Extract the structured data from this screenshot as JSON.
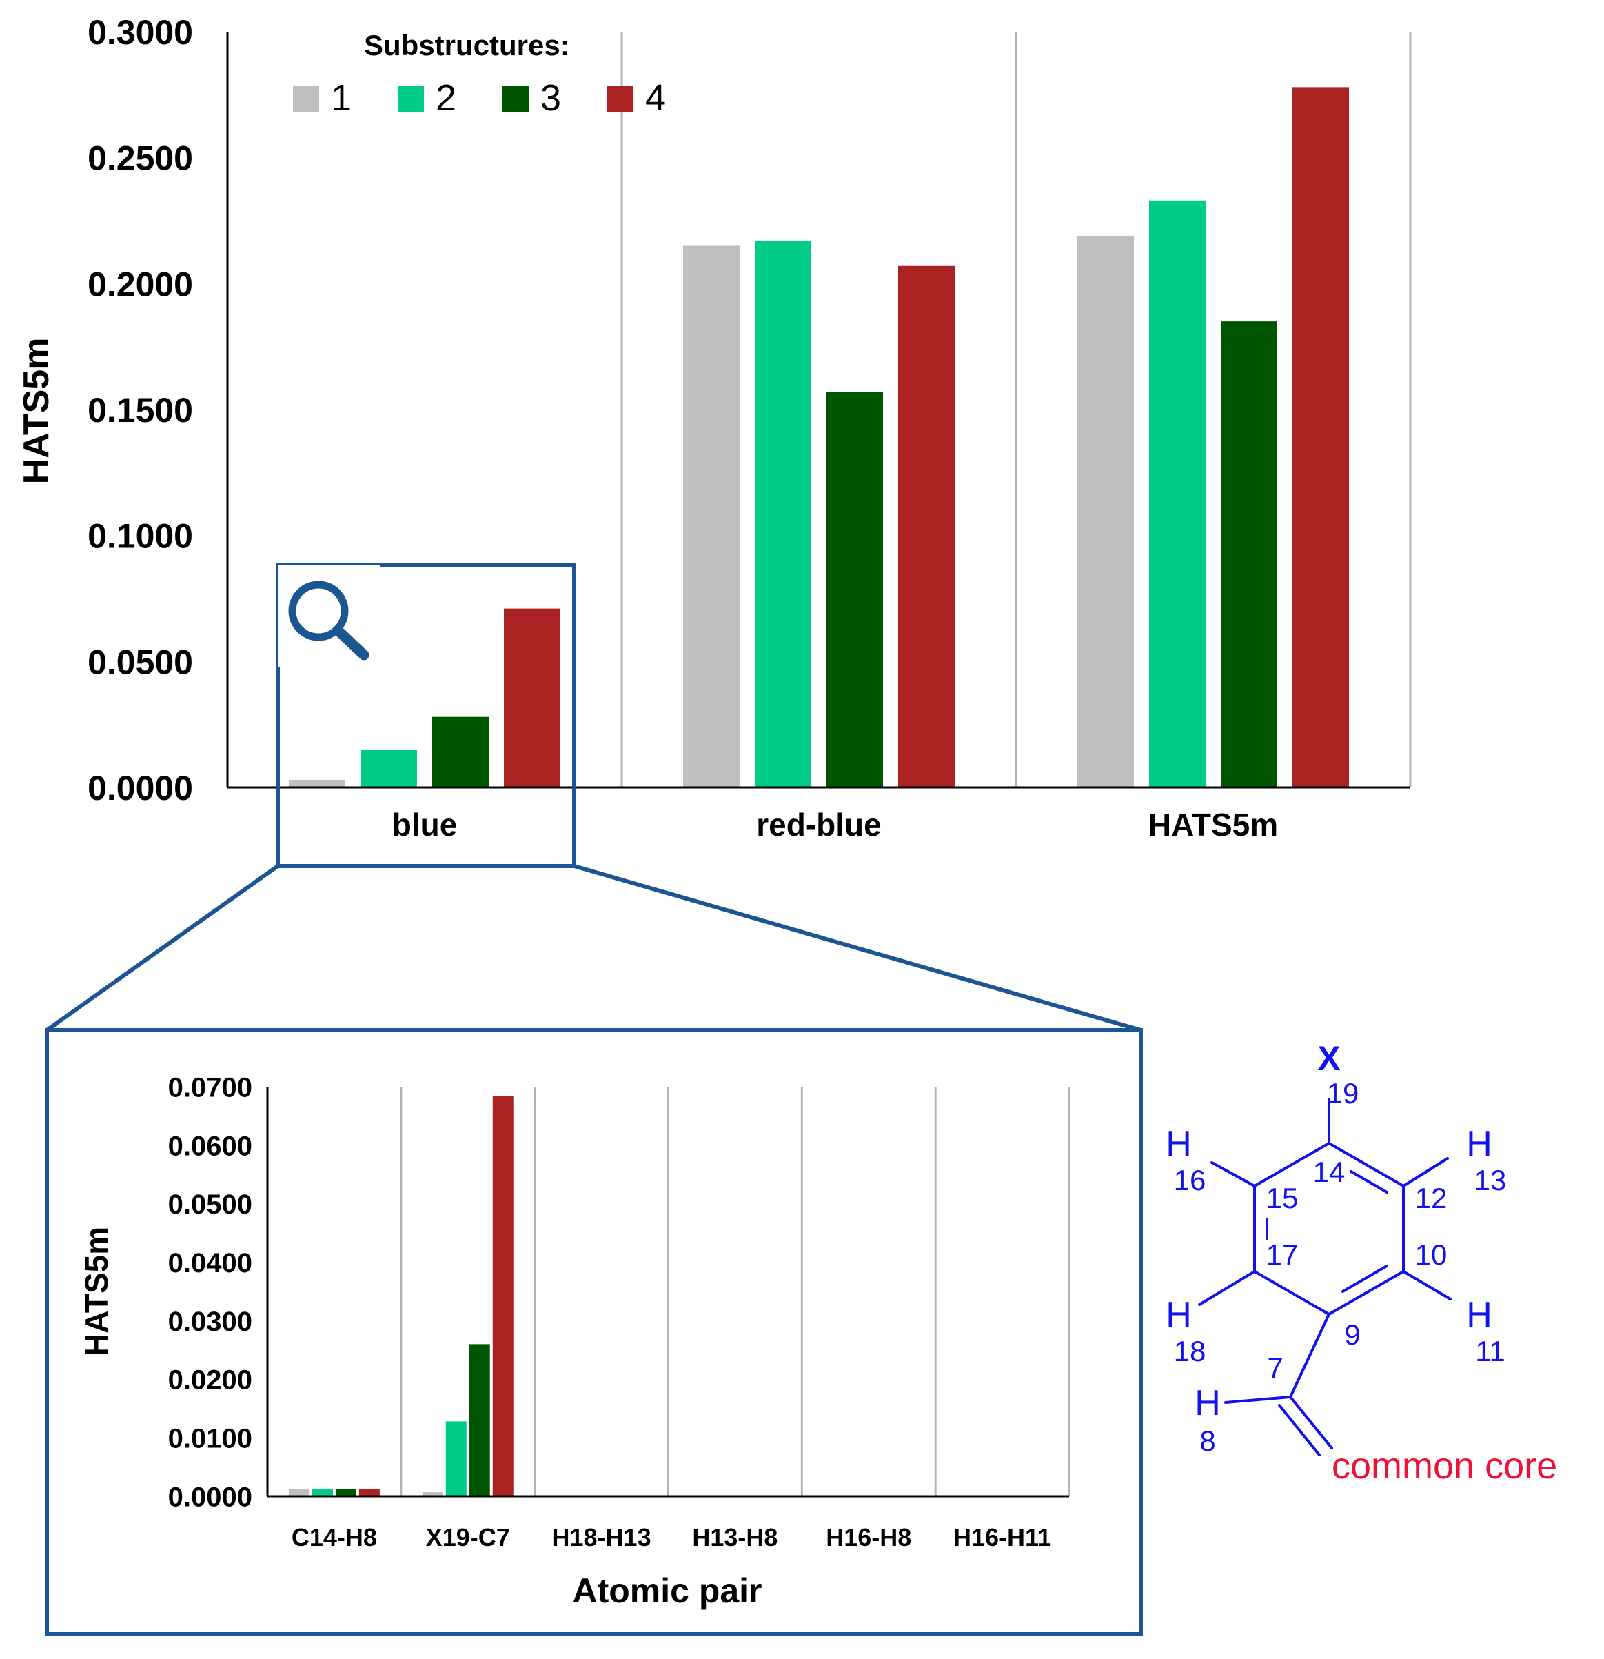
{
  "colors": {
    "s1": "#bfbfbf",
    "s2": "#00cc88",
    "s3": "#005500",
    "s4": "#aa2222",
    "frame": "#1b5592",
    "grid": "#b3b3b3",
    "molecule": "#1111ee",
    "core_label": "#ee1133",
    "text": "#000000"
  },
  "icons": {
    "zoom": "magnifier-icon"
  },
  "legend": {
    "title": "Substructures:",
    "entries": [
      "1",
      "2",
      "3",
      "4"
    ]
  },
  "chart_data": [
    {
      "type": "bar",
      "title": "",
      "xlabel": "",
      "ylabel": "HATS5m",
      "ylim": [
        0,
        0.3
      ],
      "yticks": [
        "0.0000",
        "0.0500",
        "0.1000",
        "0.1500",
        "0.2000",
        "0.2500",
        "0.3000"
      ],
      "categories": [
        "blue",
        "red-blue",
        "HATS5m"
      ],
      "series": [
        {
          "name": "1",
          "values": [
            0.003,
            0.215,
            0.219
          ]
        },
        {
          "name": "2",
          "values": [
            0.015,
            0.217,
            0.233
          ]
        },
        {
          "name": "3",
          "values": [
            0.028,
            0.157,
            0.185
          ]
        },
        {
          "name": "4",
          "values": [
            0.071,
            0.207,
            0.278
          ]
        }
      ],
      "grid": "vertical category separators",
      "legend_position": "top-left"
    },
    {
      "type": "bar",
      "title": "",
      "xlabel": "Atomic pair",
      "ylabel": "HATS5m",
      "ylim": [
        0,
        0.07
      ],
      "yticks": [
        "0.0000",
        "0.0100",
        "0.0200",
        "0.0300",
        "0.0400",
        "0.0500",
        "0.0600",
        "0.0700"
      ],
      "categories": [
        "C14-H8",
        "X19-C7",
        "H18-H13",
        "H13-H8",
        "H16-H8",
        "H16-H11"
      ],
      "series": [
        {
          "name": "1",
          "values": [
            0.0013,
            0.0007,
            0.0001,
            0.0001,
            0.0001,
            0.0001
          ]
        },
        {
          "name": "2",
          "values": [
            0.0013,
            0.0128,
            0.0001,
            0.0001,
            0.0001,
            0.0001
          ]
        },
        {
          "name": "3",
          "values": [
            0.0012,
            0.026,
            0.0001,
            0.0001,
            0.0001,
            0.0001
          ]
        },
        {
          "name": "4",
          "values": [
            0.0012,
            0.0684,
            0.0001,
            0.0001,
            0.0001,
            0.0001
          ]
        }
      ],
      "grid": "vertical category separators"
    }
  ],
  "molecule": {
    "x_atom": "X",
    "numbers": [
      "19",
      "16",
      "14",
      "13",
      "15",
      "12",
      "17",
      "10",
      "18",
      "9",
      "11",
      "7",
      "8"
    ],
    "hydrogens": [
      "H",
      "H",
      "H",
      "H",
      "H"
    ],
    "core_label": "common core"
  }
}
